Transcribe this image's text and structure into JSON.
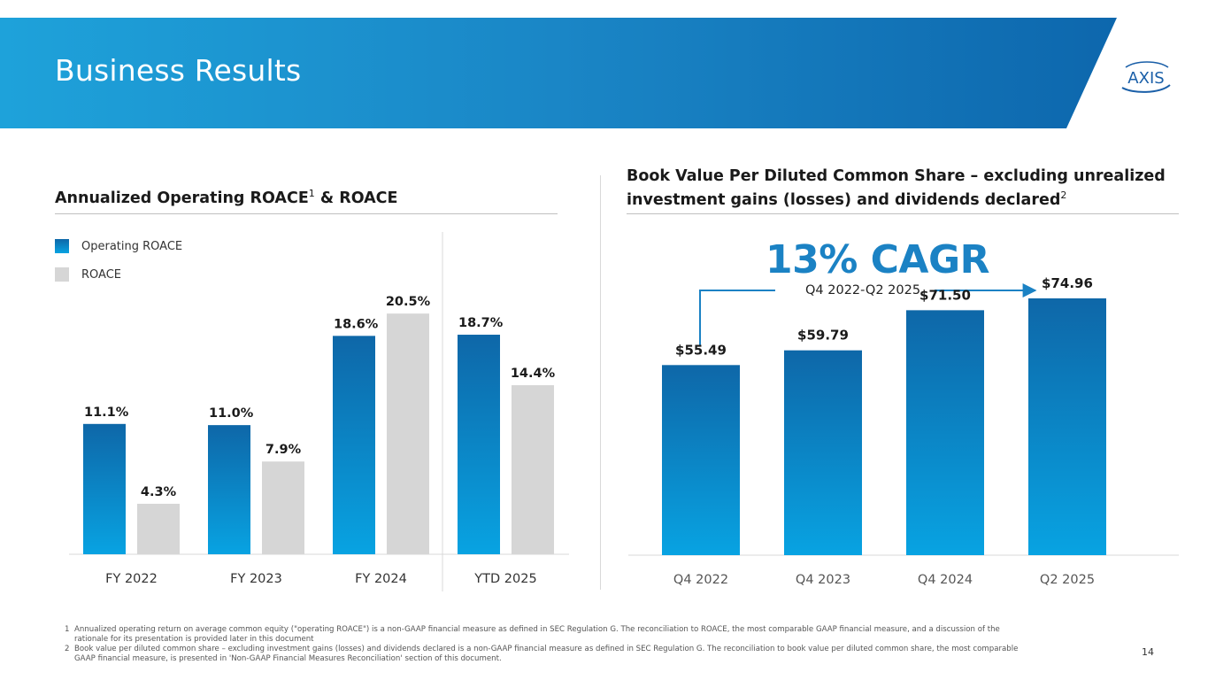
{
  "header": {
    "title": "Business Results",
    "logo_text": "AXIS"
  },
  "left_section": {
    "title": "Annualized Operating ROACE",
    "title_sup": "1",
    "title_suffix": " & ROACE"
  },
  "right_section": {
    "title_line1": "Book Value Per Diluted Common Share – excluding unrealized",
    "title_line2": "investment gains (losses) and dividends declared",
    "title_sup": "2"
  },
  "cagr": {
    "label": "13% CAGR",
    "period": "Q4 2022-Q2 2025"
  },
  "chart_data": [
    {
      "type": "bar",
      "title": "Annualized Operating ROACE & ROACE",
      "categories": [
        "FY 2022",
        "FY 2023",
        "FY 2024",
        "YTD 2025"
      ],
      "series": [
        {
          "name": "Operating ROACE",
          "values": [
            11.1,
            11.0,
            18.6,
            18.7
          ],
          "labels": [
            "11.1%",
            "11.0%",
            "18.6%",
            "18.7%"
          ],
          "color": "#1a7fc4"
        },
        {
          "name": "ROACE",
          "values": [
            4.3,
            7.9,
            20.5,
            14.4
          ],
          "labels": [
            "4.3%",
            "7.9%",
            "20.5%",
            "14.4%"
          ],
          "color": "#d6d6d6"
        }
      ],
      "ylim": [
        0,
        23
      ],
      "legend": "top-left",
      "grid": false
    },
    {
      "type": "bar",
      "title": "Book Value Per Diluted Common Share – excluding unrealized investment gains (losses) and dividends declared",
      "categories": [
        "Q4 2022",
        "Q4 2023",
        "Q4 2024",
        "Q2 2025"
      ],
      "values": [
        55.49,
        59.79,
        71.5,
        74.96
      ],
      "labels": [
        "$55.49",
        "$59.79",
        "$71.50",
        "$74.96"
      ],
      "ylim": [
        0,
        84
      ],
      "grid": false
    }
  ],
  "footnotes": [
    {
      "num": "1",
      "text": "Annualized operating return on average common equity (\"operating ROACE\") is a non-GAAP financial measure as defined in SEC Regulation G. The reconciliation to ROACE, the most comparable GAAP financial measure, and a discussion of the rationale for its presentation is provided later in this document"
    },
    {
      "num": "2",
      "text": "Book value per diluted common share – excluding investment gains (losses) and dividends declared is a non-GAAP financial measure as defined in SEC Regulation G. The reconciliation to book value per diluted common share, the most comparable GAAP financial measure, is presented in 'Non-GAAP Financial Measures Reconciliation' section of this document."
    }
  ],
  "page_number": "14",
  "colors": {
    "accent": "#1b82c4",
    "bar_blue_top": "#0e67a8",
    "bar_blue_bottom": "#08a3e2",
    "bar_gray": "#d6d6d6"
  }
}
